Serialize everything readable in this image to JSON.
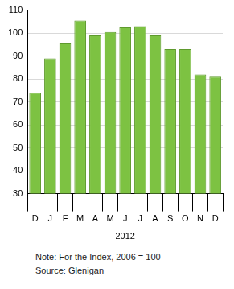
{
  "chart_data": {
    "type": "bar",
    "categories": [
      "D",
      "J",
      "F",
      "M",
      "A",
      "M",
      "J",
      "J",
      "A",
      "S",
      "O",
      "N",
      "D"
    ],
    "values": [
      74,
      89,
      95.5,
      105.5,
      99,
      100.5,
      102.5,
      103,
      99,
      93,
      93,
      82,
      81
    ],
    "color": "#7dc242",
    "xlabel": "2012",
    "annotations": [
      "Note: For the Index, 2006 = 100",
      "Source: Glenigan"
    ],
    "ylim": [
      30,
      110
    ],
    "yticks": [
      30,
      40,
      50,
      60,
      70,
      80,
      90,
      100,
      110
    ],
    "grid": true
  }
}
